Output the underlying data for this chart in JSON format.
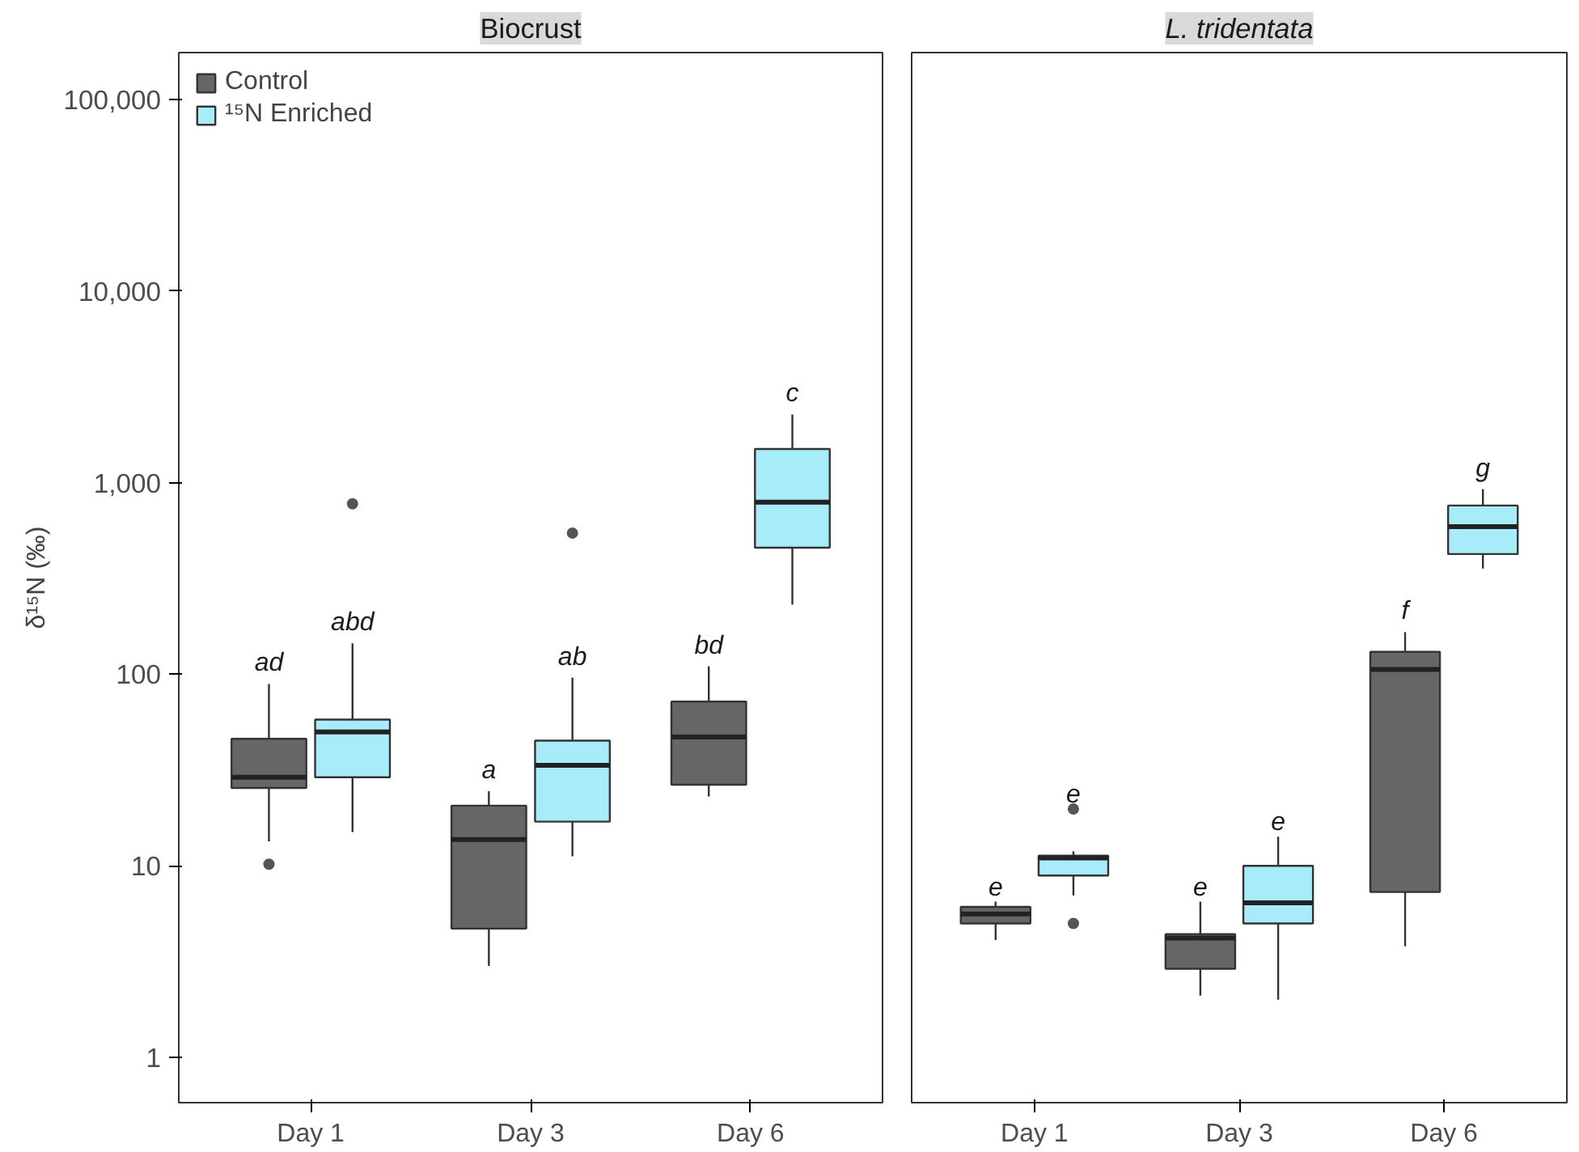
{
  "chart_data": [
    {
      "type": "box",
      "title": "Biocrust",
      "ylabel": "δ¹⁵N (‰)",
      "categories": [
        "Day 1",
        "Day 3",
        "Day 6"
      ],
      "log": true,
      "ylim": [
        0.58,
        176000
      ],
      "yticks": [
        1,
        10,
        100,
        {
          "value": 1000,
          "label": "1,000"
        },
        {
          "value": 10000,
          "label": "10,000"
        },
        {
          "value": 100000,
          "label": "100,000"
        }
      ],
      "grid": false,
      "legend": "top left",
      "series": [
        {
          "name": "Control",
          "color": "#666666",
          "boxes": [
            {
              "low": 13.4,
              "q1": 25.5,
              "median": 29,
              "q3": 46,
              "high": 89,
              "outliers": [
                10.2
              ]
            },
            {
              "low": 3.0,
              "q1": 4.7,
              "median": 13.7,
              "q3": 20.6,
              "high": 24.5
            },
            {
              "low": 23,
              "q1": 26.5,
              "median": 47,
              "q3": 72,
              "high": 110
            }
          ]
        },
        {
          "name": "¹⁵N Enriched",
          "color": "#a6ecf9",
          "boxes": [
            {
              "low": 15,
              "q1": 29,
              "median": 50,
              "q3": 58,
              "high": 145,
              "outliers": [
                776
              ]
            },
            {
              "low": 11.2,
              "q1": 17,
              "median": 33.5,
              "q3": 45,
              "high": 96,
              "outliers": [
                546
              ]
            },
            {
              "low": 231,
              "q1": 458,
              "median": 791,
              "q3": 1500,
              "high": 2270
            }
          ]
        }
      ],
      "annotations": [
        "ad",
        "abd",
        "a",
        "ab",
        "bd",
        "c"
      ]
    },
    {
      "type": "box",
      "title": "L. tridentata",
      "categories": [
        "Day 1",
        "Day 3",
        "Day 6"
      ],
      "log": true,
      "ylim": [
        0.58,
        176000
      ],
      "grid": false,
      "tick_labels": "x",
      "series": [
        {
          "color": "#666666",
          "boxes": [
            {
              "low": 4.1,
              "q1": 5.0,
              "median": 5.6,
              "q3": 6.1,
              "high": 6.5
            },
            {
              "low": 2.1,
              "q1": 2.9,
              "median": 4.2,
              "q3": 4.4,
              "high": 6.5
            },
            {
              "low": 3.8,
              "q1": 7.3,
              "median": 106,
              "q3": 131,
              "high": 166
            }
          ]
        },
        {
          "color": "#a6ecf9",
          "boxes": [
            {
              "low": 7.0,
              "q1": 8.9,
              "median": 11.0,
              "q3": 11.3,
              "high": 11.9,
              "outliers": [
                19.8,
                5.0
              ]
            },
            {
              "low": 2.0,
              "q1": 5.0,
              "median": 6.4,
              "q3": 10.0,
              "high": 14.2
            },
            {
              "low": 356,
              "q1": 424,
              "median": 590,
              "q3": 760,
              "high": 925
            }
          ]
        }
      ],
      "annotations": [
        "e",
        "e",
        "e",
        "e",
        "f",
        "g"
      ]
    }
  ]
}
